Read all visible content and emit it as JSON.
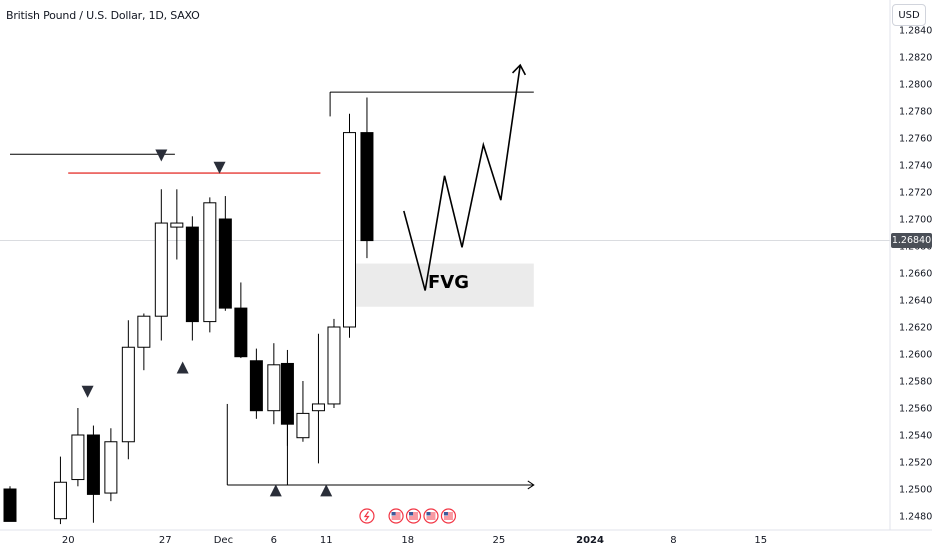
{
  "header": {
    "title": "British Pound / U.S. Dollar, 1D, SAXO",
    "currency": "USD",
    "current_price_label": "1.26840"
  },
  "annotations": {
    "fvg_label": "FVG",
    "fvg_zone": {
      "x_from": 17.5,
      "x_to": 27,
      "y_low": 1.2635,
      "y_high": 1.2667
    },
    "resistance_line": {
      "x_from": 0,
      "x_to": 8.5,
      "y": 1.2748
    },
    "red_line": {
      "x_from": 3,
      "x_to": 16,
      "y": 1.2734
    },
    "top_line": {
      "x_from": 16.5,
      "x_to": 27,
      "y": 1.2794
    },
    "bottom_arrow_line": {
      "x_from": 11.2,
      "x_to": 27,
      "y": 1.2503
    },
    "bottom_vertical_1": {
      "x": 11.2,
      "y_from": 1.2563,
      "y_to": 1.2503
    },
    "bottom_vertical_2": {
      "x": 14.3,
      "y_from": 1.2579,
      "y_to": 1.2503
    },
    "top_vertical": {
      "x": 16.5,
      "y_from": 1.2776,
      "y_to": 1.2794
    },
    "projection": [
      {
        "x": 20.3,
        "y": 1.2706
      },
      {
        "x": 21.4,
        "y": 1.2647
      },
      {
        "x": 22.4,
        "y": 1.2732
      },
      {
        "x": 23.3,
        "y": 1.2679
      },
      {
        "x": 24.4,
        "y": 1.2755
      },
      {
        "x": 25.3,
        "y": 1.2714
      },
      {
        "x": 26.3,
        "y": 1.2814
      }
    ],
    "markers": [
      {
        "type": "down",
        "x": 4,
        "y": 1.2572
      },
      {
        "type": "down",
        "x": 7.8,
        "y": 1.2747
      },
      {
        "type": "down",
        "x": 10.8,
        "y": 1.2738
      },
      {
        "type": "up",
        "x": 8.9,
        "y": 1.259
      },
      {
        "type": "up",
        "x": 13.7,
        "y": 1.2499
      },
      {
        "type": "up",
        "x": 16.3,
        "y": 1.2499
      }
    ],
    "event_icons": [
      {
        "x": 18.4,
        "kind": "flash",
        "color": "#f23645"
      },
      {
        "x": 19.9,
        "kind": "flag",
        "color": "#f23645"
      },
      {
        "x": 20.8,
        "kind": "flag",
        "color": "#f23645"
      },
      {
        "x": 21.7,
        "kind": "flag",
        "color": "#f23645"
      },
      {
        "x": 22.6,
        "kind": "flag",
        "color": "#f23645"
      }
    ]
  },
  "chart_data": {
    "type": "candlestick",
    "instrument": "British Pound / U.S. Dollar",
    "timeframe": "1D",
    "source": "SAXO",
    "current_price": 1.2684,
    "candles": [
      {
        "x": 0.0,
        "open": 1.25,
        "high": 1.2502,
        "low": 1.2476,
        "close": 1.2476
      },
      {
        "x": 2.6,
        "open": 1.2478,
        "high": 1.2524,
        "low": 1.2474,
        "close": 1.2505
      },
      {
        "x": 3.5,
        "open": 1.2507,
        "high": 1.256,
        "low": 1.2502,
        "close": 1.254
      },
      {
        "x": 4.3,
        "open": 1.254,
        "high": 1.2547,
        "low": 1.2475,
        "close": 1.2496
      },
      {
        "x": 5.2,
        "open": 1.2497,
        "high": 1.2545,
        "low": 1.2491,
        "close": 1.2535
      },
      {
        "x": 6.1,
        "open": 1.2535,
        "high": 1.2625,
        "low": 1.2522,
        "close": 1.2605
      },
      {
        "x": 6.9,
        "open": 1.2605,
        "high": 1.263,
        "low": 1.2588,
        "close": 1.2628
      },
      {
        "x": 7.8,
        "open": 1.2628,
        "high": 1.2722,
        "low": 1.261,
        "close": 1.2697
      },
      {
        "x": 8.6,
        "open": 1.2694,
        "high": 1.2722,
        "low": 1.267,
        "close": 1.2697
      },
      {
        "x": 9.4,
        "open": 1.2694,
        "high": 1.2702,
        "low": 1.261,
        "close": 1.2624
      },
      {
        "x": 10.3,
        "open": 1.2624,
        "high": 1.2716,
        "low": 1.2616,
        "close": 1.2712
      },
      {
        "x": 11.1,
        "open": 1.27,
        "high": 1.2717,
        "low": 1.2632,
        "close": 1.2634
      },
      {
        "x": 11.9,
        "open": 1.2634,
        "high": 1.2653,
        "low": 1.2597,
        "close": 1.2598
      },
      {
        "x": 12.7,
        "open": 1.2595,
        "high": 1.2604,
        "low": 1.2552,
        "close": 1.2558
      },
      {
        "x": 13.6,
        "open": 1.2558,
        "high": 1.2608,
        "low": 1.2548,
        "close": 1.2592
      },
      {
        "x": 14.3,
        "open": 1.2593,
        "high": 1.2603,
        "low": 1.2532,
        "close": 1.2548
      },
      {
        "x": 15.1,
        "open": 1.2538,
        "high": 1.258,
        "low": 1.2535,
        "close": 1.2556
      },
      {
        "x": 15.9,
        "open": 1.2558,
        "high": 1.2615,
        "low": 1.2519,
        "close": 1.2563
      },
      {
        "x": 16.7,
        "open": 1.2563,
        "high": 1.2626,
        "low": 1.256,
        "close": 1.262
      },
      {
        "x": 17.5,
        "open": 1.262,
        "high": 1.2778,
        "low": 1.2612,
        "close": 1.2764
      },
      {
        "x": 18.4,
        "open": 1.2764,
        "high": 1.279,
        "low": 1.2671,
        "close": 1.2684
      }
    ],
    "x_axis": {
      "labels": [
        "20",
        "27",
        "Dec",
        "6",
        "11",
        "18",
        "25",
        "2024",
        "8",
        "15"
      ],
      "label_positions": [
        3,
        8,
        11,
        13.6,
        16.3,
        20.5,
        25.2,
        29.9,
        34.2,
        38.7
      ],
      "bold": [
        "2024"
      ]
    },
    "y_axis": {
      "min": 1.2475,
      "max": 1.2843,
      "ticks": [
        "1.28400",
        "1.28200",
        "1.28000",
        "1.27800",
        "1.27600",
        "1.27400",
        "1.27200",
        "1.27000",
        "1.26800",
        "1.26600",
        "1.26400",
        "1.26200",
        "1.26000",
        "1.25800",
        "1.25600",
        "1.25400",
        "1.25200",
        "1.25000",
        "1.24800"
      ],
      "tick_values": [
        1.284,
        1.282,
        1.28,
        1.278,
        1.276,
        1.274,
        1.272,
        1.27,
        1.268,
        1.266,
        1.264,
        1.262,
        1.26,
        1.258,
        1.256,
        1.254,
        1.252,
        1.25,
        1.248
      ]
    },
    "colors": {
      "up_fill": "#ffffff",
      "down_fill": "#000000",
      "outline": "#000000"
    },
    "grid": false
  }
}
